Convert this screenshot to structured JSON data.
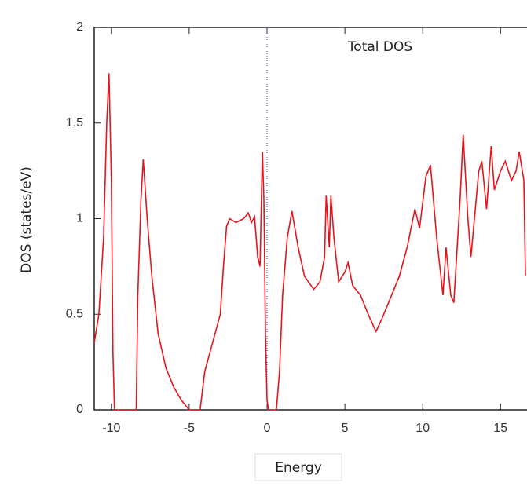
{
  "chart_data": {
    "type": "line",
    "title": "Total DOS",
    "x_label": "Energy",
    "y_label": "DOS (states/eV)",
    "x": [
      -11.1,
      -10.8,
      -10.5,
      -10.3,
      -10.15,
      -10.0,
      -9.9,
      -9.8,
      -8.4,
      -8.3,
      -8.1,
      -7.95,
      -7.7,
      -7.4,
      -7.0,
      -6.5,
      -6.0,
      -5.5,
      -5.0,
      -4.3,
      -4.0,
      -3.5,
      -3.0,
      -2.8,
      -2.6,
      -2.4,
      -2.0,
      -1.5,
      -1.2,
      -1.0,
      -0.8,
      -0.6,
      -0.45,
      -0.3,
      -0.2,
      -0.1,
      0.0,
      0.1,
      0.6,
      0.8,
      1.0,
      1.3,
      1.6,
      2.0,
      2.4,
      3.0,
      3.4,
      3.7,
      3.8,
      4.0,
      4.1,
      4.3,
      4.6,
      5.0,
      5.2,
      5.5,
      6.0,
      6.5,
      7.0,
      7.4,
      8.0,
      8.5,
      9.0,
      9.5,
      9.8,
      10.2,
      10.5,
      10.9,
      11.3,
      11.5,
      11.8,
      12.0,
      12.4,
      12.6,
      12.9,
      13.1,
      13.6,
      13.8,
      14.1,
      14.4,
      14.6,
      15.0,
      15.3,
      15.7,
      16.0,
      16.2,
      16.5,
      16.6
    ],
    "series": [
      {
        "color": "#e8141c",
        "values": [
          0.35,
          0.5,
          0.9,
          1.5,
          1.76,
          1.2,
          0.3,
          0,
          0,
          0.6,
          1.1,
          1.31,
          1.0,
          0.7,
          0.4,
          0.22,
          0.12,
          0.05,
          0,
          0,
          0.2,
          0.35,
          0.5,
          0.75,
          0.96,
          1.0,
          0.98,
          1.0,
          1.03,
          0.98,
          1.01,
          0.8,
          0.75,
          1.35,
          1.1,
          0.4,
          0.05,
          0,
          0,
          0.2,
          0.6,
          0.9,
          1.04,
          0.85,
          0.7,
          0.63,
          0.67,
          0.8,
          1.12,
          0.85,
          1.12,
          0.9,
          0.67,
          0.72,
          0.77,
          0.65,
          0.6,
          0.5,
          0.41,
          0.48,
          0.6,
          0.7,
          0.85,
          1.05,
          0.95,
          1.22,
          1.28,
          0.9,
          0.6,
          0.85,
          0.6,
          0.56,
          1.1,
          1.44,
          1.0,
          0.8,
          1.25,
          1.3,
          1.05,
          1.38,
          1.15,
          1.25,
          1.3,
          1.2,
          1.25,
          1.35,
          1.2,
          0.7
        ]
      }
    ],
    "vlines": [
      0
    ],
    "xlim": [
      -11.1,
      16.7
    ],
    "xticks": [
      -10,
      -5,
      0,
      5,
      10,
      15
    ],
    "ylim": [
      0,
      2
    ],
    "yticks": [
      0,
      0.5,
      1,
      1.5,
      2
    ]
  }
}
